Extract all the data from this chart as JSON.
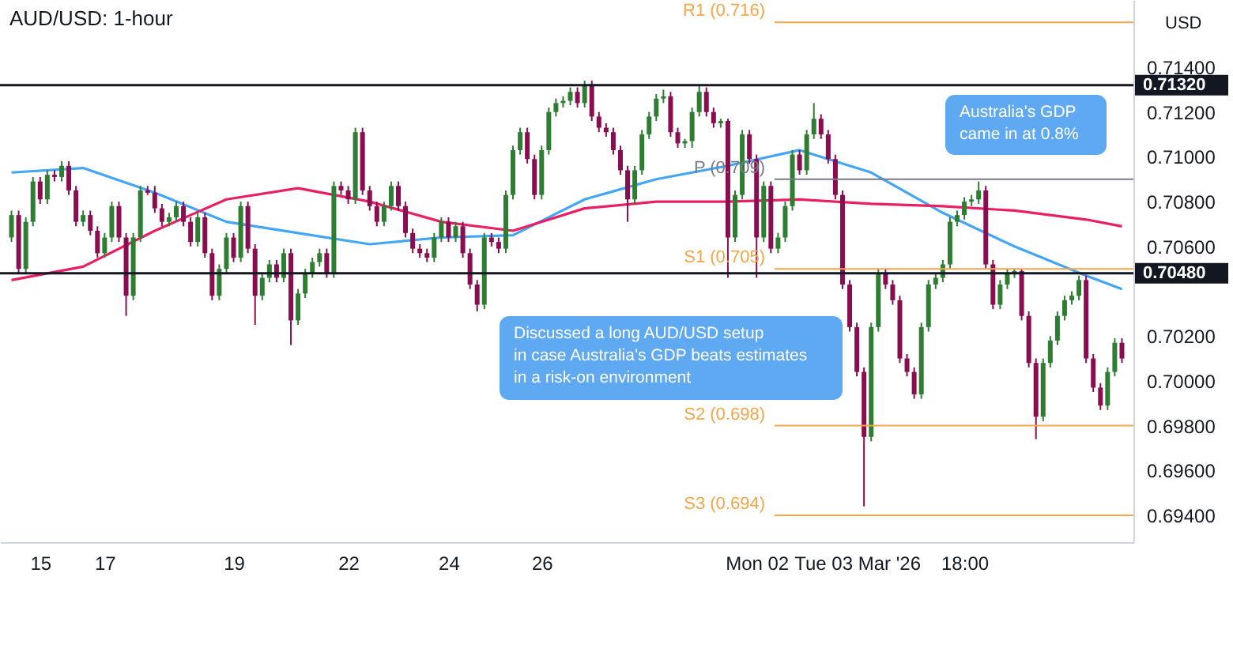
{
  "chart_data": {
    "type": "candlestick",
    "title": "AUD/USD: 1-hour",
    "ylabel": "USD",
    "categories": [
      null,
      null,
      null,
      null,
      "15",
      null,
      null,
      null,
      null,
      null,
      null,
      null,
      null,
      "17",
      null,
      null,
      null,
      null,
      null,
      null,
      null,
      null,
      null,
      null,
      null,
      null,
      null,
      null,
      null,
      null,
      null,
      "19",
      null,
      null,
      null,
      null,
      null,
      null,
      null,
      null,
      null,
      null,
      null,
      null,
      null,
      null,
      null,
      "22",
      null,
      null,
      null,
      null,
      null,
      null,
      null,
      null,
      null,
      null,
      null,
      null,
      null,
      "24",
      null,
      null,
      null,
      null,
      null,
      null,
      null,
      null,
      null,
      null,
      null,
      null,
      "26",
      null,
      null,
      null,
      null,
      null,
      null,
      null,
      null,
      null,
      null,
      null,
      null,
      null,
      null,
      null,
      null,
      null,
      null,
      null,
      null,
      null,
      null,
      null,
      null,
      null,
      null,
      null,
      null,
      null,
      "Mon 02",
      null,
      null,
      null,
      null,
      null,
      null,
      null,
      null,
      null,
      null,
      null,
      null,
      null,
      "Tue 03 Mar '26",
      null,
      null,
      null,
      null,
      null,
      null,
      null,
      null,
      null,
      null,
      null,
      null,
      null,
      null,
      "18:00",
      null,
      null,
      null,
      null,
      null,
      null,
      null,
      null,
      null,
      null,
      null,
      null,
      null,
      null,
      null,
      null,
      null,
      null,
      null,
      null,
      null,
      null
    ],
    "ohlc": [
      [
        0.7064,
        0.7076,
        0.7062,
        0.7074
      ],
      [
        0.7074,
        0.7076,
        0.7048,
        0.705
      ],
      [
        0.705,
        0.7073,
        0.7048,
        0.7071
      ],
      [
        0.7071,
        0.7091,
        0.7069,
        0.7089
      ],
      [
        0.7089,
        0.7091,
        0.7079,
        0.7081
      ],
      [
        0.7081,
        0.7094,
        0.7079,
        0.7092
      ],
      [
        0.7092,
        0.7094,
        0.7089,
        0.7091
      ],
      [
        0.7091,
        0.7098,
        0.7089,
        0.7096
      ],
      [
        0.7096,
        0.7098,
        0.7083,
        0.7085
      ],
      [
        0.7085,
        0.7087,
        0.7069,
        0.7071
      ],
      [
        0.7071,
        0.7076,
        0.7069,
        0.7074
      ],
      [
        0.7074,
        0.7076,
        0.7065,
        0.7067
      ],
      [
        0.7067,
        0.7069,
        0.7055,
        0.7057
      ],
      [
        0.7057,
        0.7066,
        0.7055,
        0.7064
      ],
      [
        0.7064,
        0.708,
        0.7062,
        0.7078
      ],
      [
        0.7078,
        0.708,
        0.7062,
        0.7064
      ],
      [
        0.7064,
        0.7066,
        0.7029,
        0.7038
      ],
      [
        0.7038,
        0.7066,
        0.7036,
        0.7064
      ],
      [
        0.7064,
        0.7087,
        0.7062,
        0.7085
      ],
      [
        0.7085,
        0.7087,
        0.7083,
        0.7084
      ],
      [
        0.7084,
        0.7087,
        0.7075,
        0.7077
      ],
      [
        0.7077,
        0.7079,
        0.7069,
        0.7071
      ],
      [
        0.7071,
        0.7075,
        0.7069,
        0.7073
      ],
      [
        0.7073,
        0.708,
        0.7071,
        0.7078
      ],
      [
        0.7078,
        0.708,
        0.7069,
        0.7071
      ],
      [
        0.7071,
        0.7073,
        0.706,
        0.7062
      ],
      [
        0.7062,
        0.7075,
        0.706,
        0.7073
      ],
      [
        0.7073,
        0.7075,
        0.7055,
        0.7057
      ],
      [
        0.7057,
        0.7059,
        0.7036,
        0.7038
      ],
      [
        0.7038,
        0.7052,
        0.7036,
        0.705
      ],
      [
        0.705,
        0.7066,
        0.7048,
        0.7064
      ],
      [
        0.7064,
        0.7066,
        0.7053,
        0.7055
      ],
      [
        0.7055,
        0.708,
        0.7053,
        0.7078
      ],
      [
        0.7078,
        0.708,
        0.7057,
        0.7059
      ],
      [
        0.7059,
        0.7061,
        0.7025,
        0.7038
      ],
      [
        0.7038,
        0.7048,
        0.7036,
        0.7046
      ],
      [
        0.7046,
        0.7054,
        0.7044,
        0.7052
      ],
      [
        0.7052,
        0.7054,
        0.7044,
        0.7046
      ],
      [
        0.7046,
        0.7059,
        0.7044,
        0.7057
      ],
      [
        0.7057,
        0.7059,
        0.7016,
        0.7027
      ],
      [
        0.7027,
        0.7041,
        0.7025,
        0.7039
      ],
      [
        0.7039,
        0.705,
        0.7037,
        0.7048
      ],
      [
        0.7048,
        0.7055,
        0.7046,
        0.7053
      ],
      [
        0.7053,
        0.7059,
        0.7051,
        0.7057
      ],
      [
        0.7057,
        0.7059,
        0.7046,
        0.7048
      ],
      [
        0.7048,
        0.7089,
        0.7046,
        0.7087
      ],
      [
        0.7087,
        0.7089,
        0.7083,
        0.7085
      ],
      [
        0.7085,
        0.7087,
        0.7079,
        0.7081
      ],
      [
        0.7081,
        0.7113,
        0.7079,
        0.7111
      ],
      [
        0.7111,
        0.7113,
        0.7083,
        0.7085
      ],
      [
        0.7085,
        0.7087,
        0.7076,
        0.7078
      ],
      [
        0.7078,
        0.708,
        0.7069,
        0.7071
      ],
      [
        0.7071,
        0.708,
        0.7069,
        0.7078
      ],
      [
        0.7078,
        0.7089,
        0.7076,
        0.7087
      ],
      [
        0.7087,
        0.7089,
        0.7076,
        0.7078
      ],
      [
        0.7078,
        0.708,
        0.7064,
        0.7066
      ],
      [
        0.7066,
        0.7068,
        0.7057,
        0.7059
      ],
      [
        0.7059,
        0.7061,
        0.7055,
        0.7057
      ],
      [
        0.7057,
        0.7059,
        0.7053,
        0.7055
      ],
      [
        0.7055,
        0.7066,
        0.7053,
        0.7064
      ],
      [
        0.7064,
        0.7073,
        0.7062,
        0.7071
      ],
      [
        0.7071,
        0.7073,
        0.7062,
        0.7064
      ],
      [
        0.7064,
        0.7071,
        0.7062,
        0.7069
      ],
      [
        0.7069,
        0.7071,
        0.7055,
        0.7057
      ],
      [
        0.7057,
        0.7059,
        0.7041,
        0.7043
      ],
      [
        0.7043,
        0.7045,
        0.7031,
        0.7034
      ],
      [
        0.7034,
        0.7066,
        0.7032,
        0.7064
      ],
      [
        0.7064,
        0.7066,
        0.706,
        0.7062
      ],
      [
        0.7062,
        0.7064,
        0.7057,
        0.7059
      ],
      [
        0.7059,
        0.7085,
        0.7057,
        0.7083
      ],
      [
        0.7083,
        0.7105,
        0.7081,
        0.7103
      ],
      [
        0.7103,
        0.7113,
        0.7101,
        0.7111
      ],
      [
        0.7111,
        0.7113,
        0.7097,
        0.7099
      ],
      [
        0.7099,
        0.7101,
        0.7081,
        0.7083
      ],
      [
        0.7083,
        0.7105,
        0.7081,
        0.7103
      ],
      [
        0.7103,
        0.7122,
        0.7101,
        0.712
      ],
      [
        0.712,
        0.7126,
        0.7118,
        0.7124
      ],
      [
        0.7124,
        0.7127,
        0.7122,
        0.7125
      ],
      [
        0.7125,
        0.7131,
        0.7123,
        0.7129
      ],
      [
        0.7129,
        0.7131,
        0.7122,
        0.7124
      ],
      [
        0.7124,
        0.7134,
        0.7122,
        0.7132
      ],
      [
        0.7132,
        0.7134,
        0.7116,
        0.7118
      ],
      [
        0.7118,
        0.712,
        0.7111,
        0.7113
      ],
      [
        0.7113,
        0.7115,
        0.7109,
        0.7111
      ],
      [
        0.7111,
        0.7113,
        0.7101,
        0.7103
      ],
      [
        0.7103,
        0.7105,
        0.7092,
        0.7094
      ],
      [
        0.7094,
        0.7096,
        0.7071,
        0.7081
      ],
      [
        0.7081,
        0.7096,
        0.7079,
        0.7094
      ],
      [
        0.7094,
        0.7112,
        0.7092,
        0.711
      ],
      [
        0.711,
        0.712,
        0.7108,
        0.7118
      ],
      [
        0.7118,
        0.7128,
        0.7116,
        0.7126
      ],
      [
        0.7126,
        0.713,
        0.7124,
        0.7127
      ],
      [
        0.7127,
        0.7129,
        0.7109,
        0.7111
      ],
      [
        0.7111,
        0.7113,
        0.7104,
        0.7106
      ],
      [
        0.7106,
        0.7108,
        0.7104,
        0.7107
      ],
      [
        0.7107,
        0.7122,
        0.7104,
        0.712
      ],
      [
        0.712,
        0.7132,
        0.7118,
        0.7129
      ],
      [
        0.7129,
        0.7131,
        0.7118,
        0.712
      ],
      [
        0.712,
        0.7122,
        0.7113,
        0.7115
      ],
      [
        0.7115,
        0.7117,
        0.7113,
        0.7116
      ],
      [
        0.7116,
        0.7117,
        0.7046,
        0.7064
      ],
      [
        0.7064,
        0.7085,
        0.7062,
        0.7083
      ],
      [
        0.7083,
        0.7112,
        0.7081,
        0.711
      ],
      [
        0.711,
        0.7112,
        0.7097,
        0.7099
      ],
      [
        0.7099,
        0.7101,
        0.7046,
        0.7064
      ],
      [
        0.7064,
        0.7089,
        0.7062,
        0.7087
      ],
      [
        0.7087,
        0.7089,
        0.7057,
        0.7059
      ],
      [
        0.7059,
        0.7066,
        0.7057,
        0.7064
      ],
      [
        0.7064,
        0.708,
        0.7062,
        0.7078
      ],
      [
        0.7078,
        0.7103,
        0.7076,
        0.7101
      ],
      [
        0.7101,
        0.7103,
        0.7092,
        0.7094
      ],
      [
        0.7094,
        0.7112,
        0.7092,
        0.711
      ],
      [
        0.711,
        0.7124,
        0.7108,
        0.7117
      ],
      [
        0.7117,
        0.7119,
        0.7108,
        0.711
      ],
      [
        0.711,
        0.7112,
        0.7097,
        0.7099
      ],
      [
        0.7099,
        0.7101,
        0.7081,
        0.7083
      ],
      [
        0.7083,
        0.7085,
        0.7041,
        0.7043
      ],
      [
        0.7043,
        0.7045,
        0.7022,
        0.7024
      ],
      [
        0.7024,
        0.7026,
        0.7002,
        0.7004
      ],
      [
        0.7004,
        0.7006,
        0.6944,
        0.6975
      ],
      [
        0.6975,
        0.7026,
        0.6973,
        0.7024
      ],
      [
        0.7024,
        0.705,
        0.7022,
        0.7048
      ],
      [
        0.7048,
        0.705,
        0.7041,
        0.7043
      ],
      [
        0.7043,
        0.7045,
        0.7034,
        0.7036
      ],
      [
        0.7036,
        0.7038,
        0.7008,
        0.701
      ],
      [
        0.701,
        0.7012,
        0.7002,
        0.7004
      ],
      [
        0.7004,
        0.7006,
        0.6992,
        0.6994
      ],
      [
        0.6994,
        0.7026,
        0.6992,
        0.7024
      ],
      [
        0.7024,
        0.7045,
        0.7022,
        0.7043
      ],
      [
        0.7043,
        0.7048,
        0.7041,
        0.7046
      ],
      [
        0.7046,
        0.7054,
        0.7044,
        0.7052
      ],
      [
        0.7052,
        0.7073,
        0.705,
        0.7071
      ],
      [
        0.7071,
        0.7076,
        0.7069,
        0.7074
      ],
      [
        0.7074,
        0.7082,
        0.7072,
        0.708
      ],
      [
        0.708,
        0.7083,
        0.7078,
        0.7081
      ],
      [
        0.7081,
        0.7089,
        0.7079,
        0.7085
      ],
      [
        0.7085,
        0.7087,
        0.705,
        0.7052
      ],
      [
        0.7052,
        0.7054,
        0.7032,
        0.7034
      ],
      [
        0.7034,
        0.7045,
        0.7032,
        0.7043
      ],
      [
        0.7043,
        0.705,
        0.7041,
        0.7048
      ],
      [
        0.7048,
        0.705,
        0.7046,
        0.7049
      ],
      [
        0.7049,
        0.705,
        0.7027,
        0.7029
      ],
      [
        0.7029,
        0.7031,
        0.7006,
        0.7008
      ],
      [
        0.7008,
        0.701,
        0.6974,
        0.6984
      ],
      [
        0.6984,
        0.701,
        0.6982,
        0.7008
      ],
      [
        0.7008,
        0.702,
        0.7006,
        0.7018
      ],
      [
        0.7018,
        0.7031,
        0.7016,
        0.7029
      ],
      [
        0.7029,
        0.7038,
        0.7027,
        0.7036
      ],
      [
        0.7036,
        0.704,
        0.7034,
        0.7038
      ],
      [
        0.7038,
        0.7047,
        0.7036,
        0.7045
      ],
      [
        0.7045,
        0.7047,
        0.7008,
        0.701
      ],
      [
        0.701,
        0.7012,
        0.6995,
        0.6997
      ],
      [
        0.6997,
        0.6999,
        0.6987,
        0.6989
      ],
      [
        0.6989,
        0.7006,
        0.6987,
        0.7004
      ],
      [
        0.7004,
        0.7019,
        0.7002,
        0.7017
      ],
      [
        0.7017,
        0.7019,
        0.7008,
        0.701
      ]
    ],
    "series": [
      {
        "type": "line",
        "color": "#42a5f5",
        "values": [
          0.7093,
          null,
          null,
          null,
          null,
          null,
          null,
          null,
          null,
          null,
          0.7095,
          null,
          null,
          null,
          null,
          null,
          null,
          null,
          null,
          null,
          0.7084,
          null,
          null,
          null,
          null,
          null,
          null,
          null,
          null,
          null,
          0.7071,
          null,
          null,
          null,
          null,
          null,
          null,
          null,
          null,
          null,
          0.7066,
          null,
          null,
          null,
          null,
          null,
          null,
          null,
          null,
          null,
          0.7061,
          null,
          null,
          null,
          null,
          null,
          null,
          null,
          null,
          null,
          0.7064,
          null,
          null,
          null,
          null,
          null,
          null,
          null,
          null,
          null,
          0.7065,
          null,
          null,
          null,
          null,
          null,
          null,
          null,
          null,
          null,
          0.7081,
          null,
          null,
          null,
          null,
          null,
          null,
          null,
          null,
          null,
          0.709,
          null,
          null,
          null,
          null,
          null,
          null,
          null,
          null,
          null,
          0.7096,
          null,
          null,
          null,
          null,
          null,
          null,
          null,
          null,
          null,
          0.7103,
          null,
          null,
          null,
          null,
          null,
          null,
          null,
          null,
          null,
          0.7093,
          null,
          null,
          null,
          null,
          null,
          null,
          null,
          null,
          null,
          0.7075,
          null,
          null,
          null,
          null,
          null,
          null,
          null,
          null,
          null,
          0.706,
          null,
          null,
          null,
          null,
          null,
          null,
          null,
          null,
          null,
          0.7047,
          null,
          null,
          null,
          null,
          0.7041
        ]
      },
      {
        "type": "line",
        "color": "#e91e63",
        "values": [
          0.7045,
          null,
          null,
          null,
          null,
          null,
          null,
          null,
          null,
          null,
          0.7051,
          null,
          null,
          null,
          null,
          null,
          null,
          null,
          null,
          null,
          0.7067,
          null,
          null,
          null,
          null,
          null,
          null,
          null,
          null,
          null,
          0.7081,
          null,
          null,
          null,
          null,
          null,
          null,
          null,
          null,
          null,
          0.7086,
          null,
          null,
          null,
          null,
          null,
          null,
          null,
          null,
          null,
          0.708,
          null,
          null,
          null,
          null,
          null,
          null,
          null,
          null,
          null,
          0.7071,
          null,
          null,
          null,
          null,
          null,
          null,
          null,
          null,
          null,
          0.7067,
          null,
          null,
          null,
          null,
          null,
          null,
          null,
          null,
          null,
          0.7077,
          null,
          null,
          null,
          null,
          null,
          null,
          null,
          null,
          null,
          0.708,
          null,
          null,
          null,
          null,
          null,
          null,
          null,
          null,
          null,
          0.708,
          null,
          null,
          null,
          null,
          null,
          null,
          null,
          null,
          null,
          0.7081,
          null,
          null,
          null,
          null,
          null,
          null,
          null,
          null,
          null,
          0.7079,
          null,
          null,
          null,
          null,
          null,
          null,
          null,
          null,
          null,
          0.7078,
          null,
          null,
          null,
          null,
          null,
          null,
          null,
          null,
          null,
          0.7076,
          null,
          null,
          null,
          null,
          null,
          null,
          null,
          null,
          null,
          0.7072,
          null,
          null,
          null,
          null,
          0.7069
        ]
      }
    ],
    "ylim": [
      0.6928,
      0.717
    ],
    "yticks": [
      {
        "value": 0.694,
        "label": "0.69400"
      },
      {
        "value": 0.696,
        "label": "0.69600"
      },
      {
        "value": 0.698,
        "label": "0.69800"
      },
      {
        "value": 0.7,
        "label": "0.70000"
      },
      {
        "value": 0.702,
        "label": "0.70200"
      },
      {
        "value": 0.706,
        "label": "0.70600"
      },
      {
        "value": 0.708,
        "label": "0.70800"
      },
      {
        "value": 0.71,
        "label": "0.71000"
      },
      {
        "value": 0.712,
        "label": "0.71200"
      },
      {
        "value": 0.714,
        "label": "0.71400"
      }
    ],
    "ref_lines": [
      {
        "axis": "y",
        "value": 0.7132,
        "label": "0.71320",
        "color": "#131722"
      },
      {
        "axis": "y",
        "value": 0.7048,
        "label": "0.70480",
        "color": "#131722"
      },
      {
        "axis": "y",
        "value": 0.716,
        "label": "R1 (0.716)",
        "color": "#f5a54a"
      },
      {
        "axis": "y",
        "value": 0.709,
        "label": "P (0.709)",
        "color": "#787b86"
      },
      {
        "axis": "y",
        "value": 0.705,
        "label": "S1 (0.705)",
        "color": "#f5a54a"
      },
      {
        "axis": "y",
        "value": 0.698,
        "label": "S2 (0.698)",
        "color": "#f5a54a"
      },
      {
        "axis": "y",
        "value": 0.694,
        "label": "S3 (0.694)",
        "color": "#f5a54a"
      }
    ],
    "annotations": [
      "Discussed a long AUD/USD setup\nin case Australia's GDP beats estimates\nin a risk-on environment",
      "Australia's GDP\ncame in at 0.8%"
    ]
  }
}
